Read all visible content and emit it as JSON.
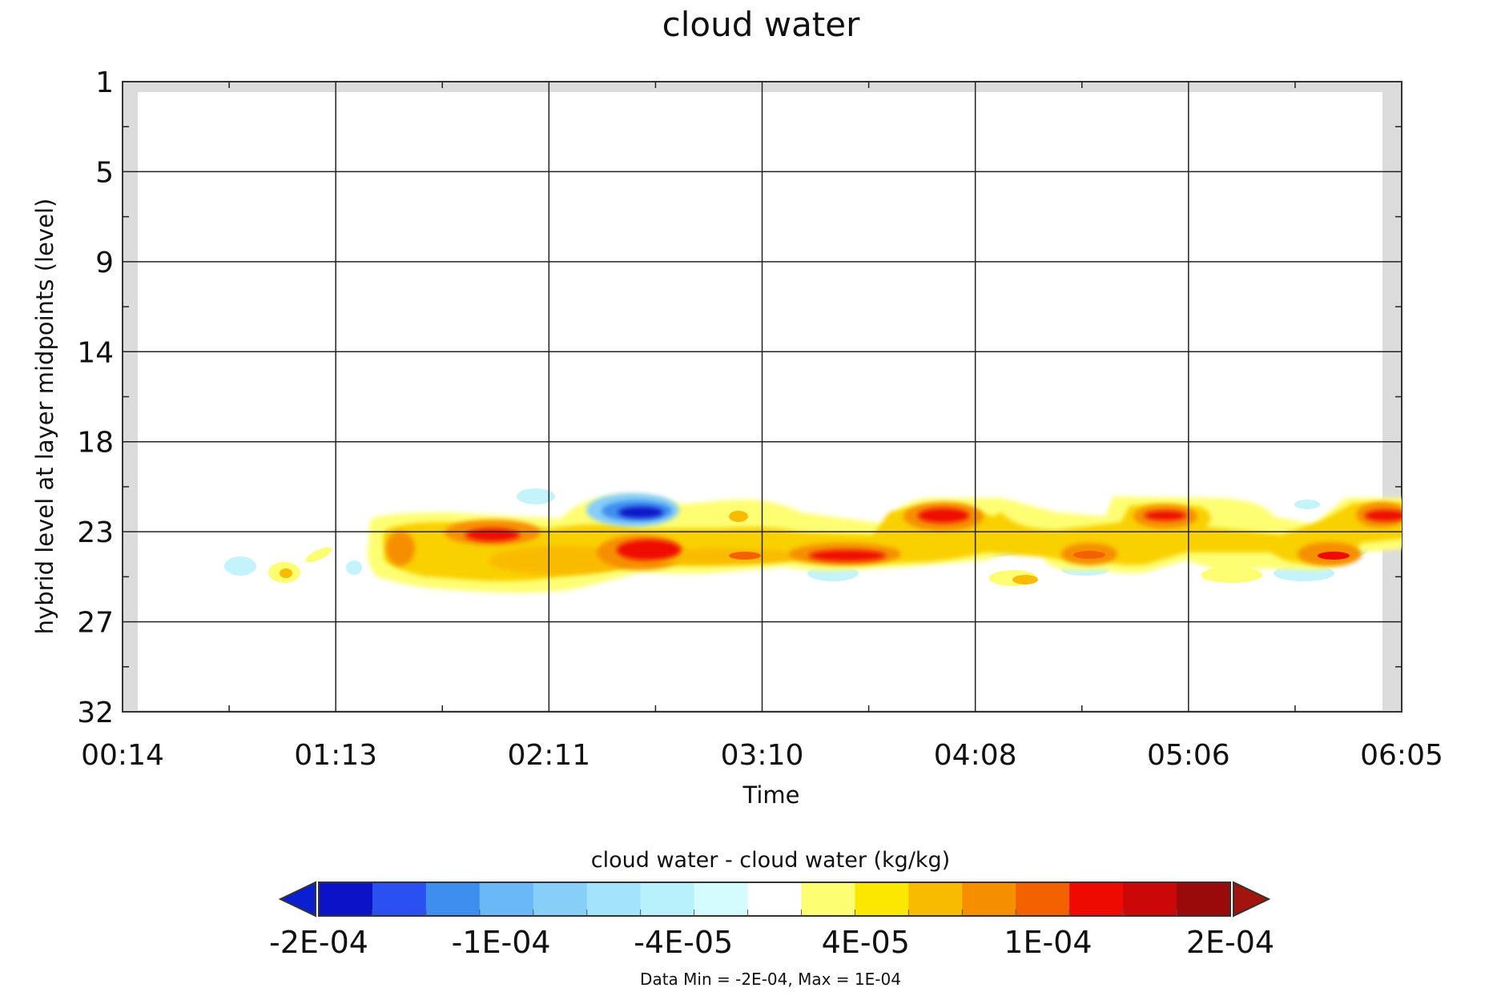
{
  "chart_data": {
    "type": "heatmap",
    "title": "cloud water",
    "xlabel": "Time",
    "ylabel": "hybrid level at layer midpoints (level)",
    "x_ticks": [
      "00:14",
      "01:13",
      "02:11",
      "03:10",
      "04:08",
      "05:06",
      "06:05"
    ],
    "y_ticks": [
      "1",
      "5",
      "9",
      "14",
      "18",
      "23",
      "27",
      "32"
    ],
    "y_reversed": true,
    "grid": true,
    "colorbar": {
      "title": "cloud water - cloud water (kg/kg)",
      "tick_labels": [
        "-2E-04",
        "-1E-04",
        "-4E-05",
        "4E-05",
        "1E-04",
        "2E-04"
      ],
      "under_color": "#0a1fd0",
      "over_color": "#a3140f",
      "colors": [
        "#0b12c8",
        "#2a50f2",
        "#3e8ef0",
        "#6ab8f8",
        "#87cef9",
        "#a3e3fb",
        "#b8f0fc",
        "#d4fbfd",
        "#ffffff",
        "#fefe73",
        "#fbe700",
        "#f9bb00",
        "#f68f00",
        "#f36100",
        "#ef0a00",
        "#cc0707",
        "#9a0a0a"
      ]
    },
    "footnote": "Data Min = -2E-04, Max = 1E-04",
    "data_min": "-2E-04",
    "data_max": "1E-04",
    "features": [
      {
        "time": "01:55",
        "level": 23,
        "value": 8e-05
      },
      {
        "time": "02:00",
        "level": 22,
        "value": 0.0001
      },
      {
        "time": "02:35",
        "level": 21,
        "value": -0.0002
      },
      {
        "time": "02:38",
        "level": 23,
        "value": 0.0001
      },
      {
        "time": "03:30",
        "level": 23.5,
        "value": 0.0001
      },
      {
        "time": "03:55",
        "level": 21,
        "value": 0.0001
      },
      {
        "time": "04:35",
        "level": 23.5,
        "value": 8e-05
      },
      {
        "time": "04:50",
        "level": 21,
        "value": 0.0001
      },
      {
        "time": "05:35",
        "level": 23.5,
        "value": 8e-05
      },
      {
        "time": "06:00",
        "level": 21,
        "value": 0.0001
      }
    ]
  }
}
